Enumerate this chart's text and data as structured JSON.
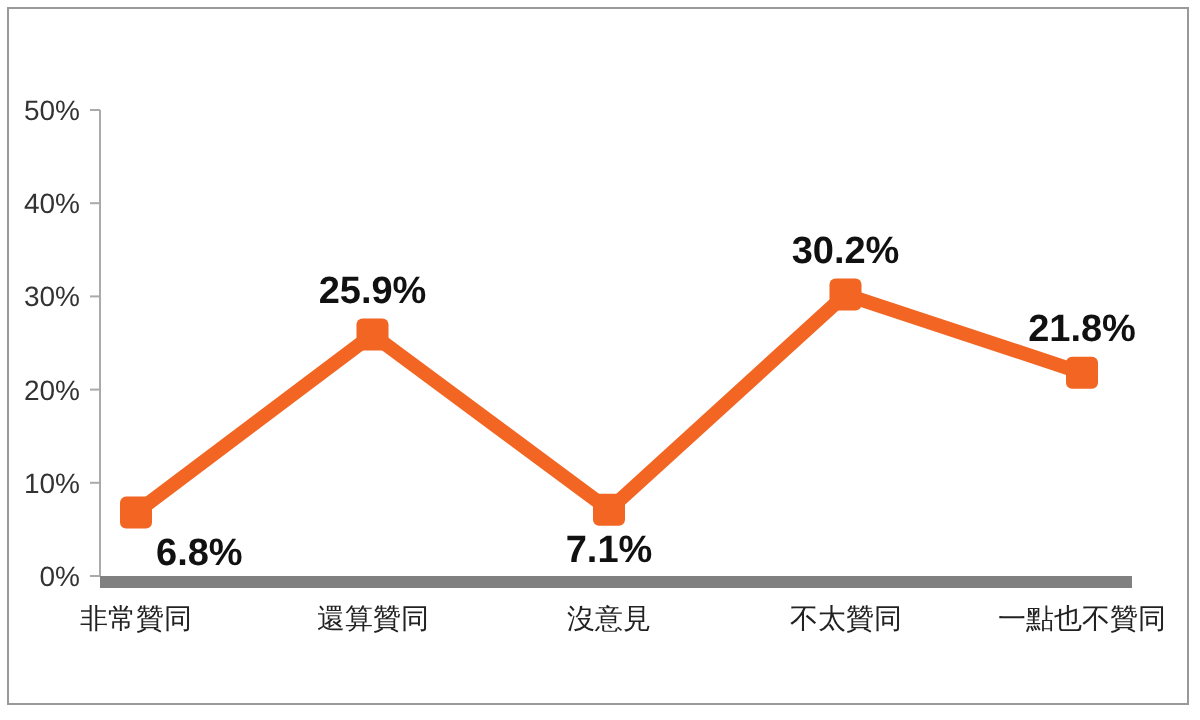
{
  "chart_data": {
    "type": "line",
    "categories": [
      "非常贊同",
      "還算贊同",
      "沒意見",
      "不太贊同",
      "一點也不贊同"
    ],
    "values": [
      6.8,
      25.9,
      7.1,
      30.2,
      21.8
    ],
    "value_labels": [
      "6.8%",
      "25.9%",
      "7.1%",
      "30.2%",
      "21.8%"
    ],
    "color": "#f26522",
    "marker": "square",
    "grid": false,
    "ylim": [
      0,
      50
    ],
    "yticks": [
      {
        "value": 0,
        "label": "0%"
      },
      {
        "value": 10,
        "label": "10%"
      },
      {
        "value": 20,
        "label": "20%"
      },
      {
        "value": 30,
        "label": "30%"
      },
      {
        "value": 40,
        "label": "40%"
      },
      {
        "value": 50,
        "label": "50%"
      }
    ]
  }
}
